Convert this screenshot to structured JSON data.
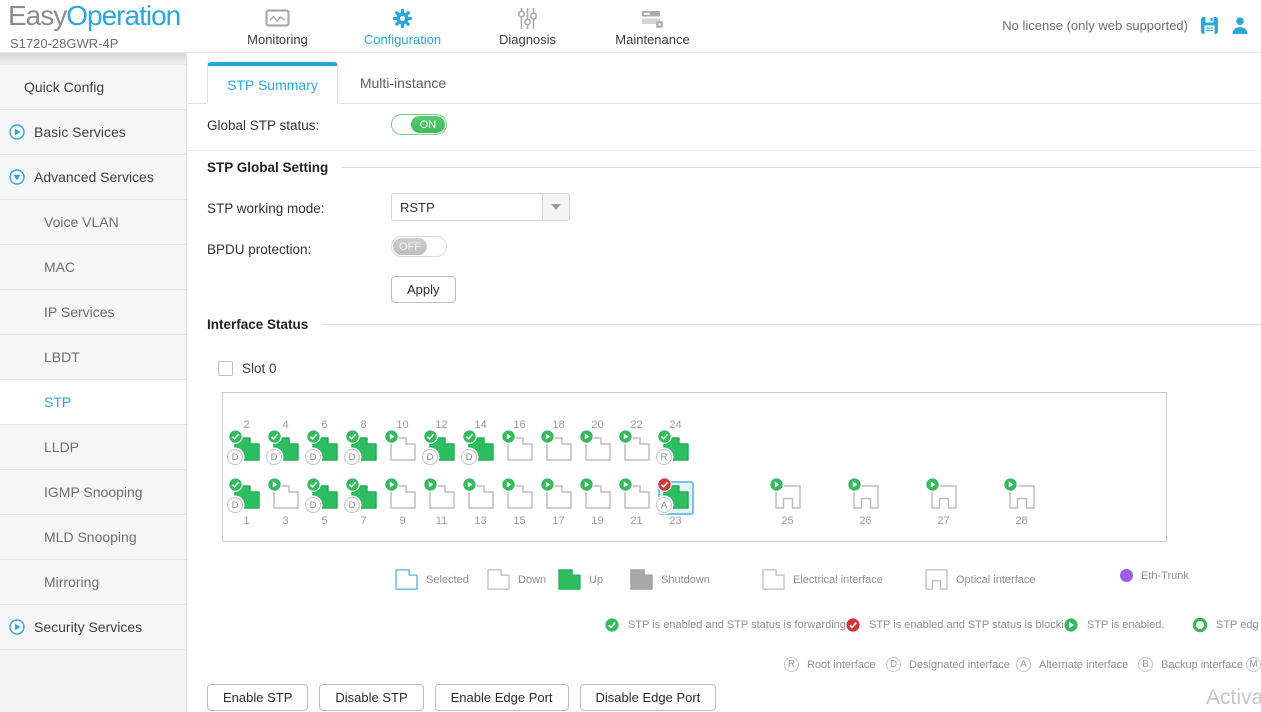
{
  "header": {
    "logo_easy": "Easy",
    "logo_operation": "Operation",
    "device_model": "S1720-28GWR-4P",
    "license_text": "No license (only web supported)",
    "nav": [
      {
        "label": "Monitoring",
        "icon": "monitor-icon",
        "active": false
      },
      {
        "label": "Configuration",
        "icon": "gear-icon",
        "active": true
      },
      {
        "label": "Diagnosis",
        "icon": "sliders-icon",
        "active": false
      },
      {
        "label": "Maintenance",
        "icon": "maintenance-icon",
        "active": false
      }
    ]
  },
  "sidebar": {
    "items": [
      {
        "label": "Quick Config",
        "type": "top",
        "expand": null,
        "active": false
      },
      {
        "label": "Basic Services",
        "type": "top",
        "expand": "collapsed",
        "active": false
      },
      {
        "label": "Advanced Services",
        "type": "top",
        "expand": "expanded",
        "active": false
      },
      {
        "label": "Voice VLAN",
        "type": "sub",
        "expand": null,
        "active": false
      },
      {
        "label": "MAC",
        "type": "sub",
        "expand": null,
        "active": false
      },
      {
        "label": "IP Services",
        "type": "sub",
        "expand": null,
        "active": false
      },
      {
        "label": "LBDT",
        "type": "sub",
        "expand": null,
        "active": false
      },
      {
        "label": "STP",
        "type": "sub",
        "expand": null,
        "active": true
      },
      {
        "label": "LLDP",
        "type": "sub",
        "expand": null,
        "active": false
      },
      {
        "label": "IGMP Snooping",
        "type": "sub",
        "expand": null,
        "active": false
      },
      {
        "label": "MLD Snooping",
        "type": "sub",
        "expand": null,
        "active": false
      },
      {
        "label": "Mirroring",
        "type": "sub",
        "expand": null,
        "active": false
      },
      {
        "label": "Security Services",
        "type": "top",
        "expand": "collapsed",
        "active": false
      }
    ]
  },
  "content": {
    "tabs": [
      {
        "label": "STP Summary",
        "active": true
      },
      {
        "label": "Multi-instance",
        "active": false
      }
    ],
    "global_stp": {
      "label": "Global STP status:",
      "value": "ON"
    },
    "sections": {
      "global_setting": "STP Global Setting",
      "interface_status": "Interface Status"
    },
    "working_mode": {
      "label": "STP working mode:",
      "value": "RSTP"
    },
    "bpdu": {
      "label": "BPDU protection:",
      "value": "OFF"
    },
    "apply_label": "Apply",
    "slot": {
      "label": "Slot 0",
      "checked": false
    },
    "ports": {
      "top_row": [
        {
          "num": "2",
          "state": "up",
          "badge": "check-green",
          "role": "D"
        },
        {
          "num": "4",
          "state": "up",
          "badge": "check-green",
          "role": "D"
        },
        {
          "num": "6",
          "state": "up",
          "badge": "check-green",
          "role": "D"
        },
        {
          "num": "8",
          "state": "up",
          "badge": "check-green",
          "role": "D"
        },
        {
          "num": "10",
          "state": "down",
          "badge": "play-green",
          "role": null
        },
        {
          "num": "12",
          "state": "up",
          "badge": "check-green",
          "role": "D"
        },
        {
          "num": "14",
          "state": "up",
          "badge": "check-green",
          "role": "D"
        },
        {
          "num": "16",
          "state": "down",
          "badge": "play-green",
          "role": null
        },
        {
          "num": "18",
          "state": "down",
          "badge": "play-green",
          "role": null
        },
        {
          "num": "20",
          "state": "down",
          "badge": "play-green",
          "role": null
        },
        {
          "num": "22",
          "state": "down",
          "badge": "play-green",
          "role": null
        },
        {
          "num": "24",
          "state": "up",
          "badge": "check-green",
          "role": "R"
        }
      ],
      "bottom_row": [
        {
          "num": "1",
          "state": "up",
          "badge": "check-green",
          "role": "D"
        },
        {
          "num": "3",
          "state": "down",
          "badge": "play-green",
          "role": null
        },
        {
          "num": "5",
          "state": "up",
          "badge": "check-green",
          "role": "D"
        },
        {
          "num": "7",
          "state": "up",
          "badge": "check-green",
          "role": "D"
        },
        {
          "num": "9",
          "state": "down",
          "badge": "play-green",
          "role": null
        },
        {
          "num": "11",
          "state": "down",
          "badge": "play-green",
          "role": null
        },
        {
          "num": "13",
          "state": "down",
          "badge": "play-green",
          "role": null
        },
        {
          "num": "15",
          "state": "down",
          "badge": "play-green",
          "role": null
        },
        {
          "num": "17",
          "state": "down",
          "badge": "play-green",
          "role": null
        },
        {
          "num": "19",
          "state": "down",
          "badge": "play-green",
          "role": null
        },
        {
          "num": "21",
          "state": "down",
          "badge": "play-green",
          "role": null
        },
        {
          "num": "23",
          "state": "up",
          "badge": "check-red",
          "role": "A",
          "selected": true
        },
        {
          "num": "25",
          "state": "down",
          "badge": "play-green",
          "role": null,
          "kind": "optical"
        },
        {
          "num": "26",
          "state": "down",
          "badge": "play-green",
          "role": null,
          "kind": "optical"
        },
        {
          "num": "27",
          "state": "down",
          "badge": "play-green",
          "role": null,
          "kind": "optical"
        },
        {
          "num": "28",
          "state": "down",
          "badge": "play-green",
          "role": null,
          "kind": "optical"
        }
      ]
    },
    "legend_state": [
      {
        "icon": "selected",
        "label": "Selected"
      },
      {
        "icon": "down",
        "label": "Down"
      },
      {
        "icon": "up",
        "label": "Up"
      },
      {
        "icon": "shutdown",
        "label": "Shutdown"
      },
      {
        "icon": "electrical",
        "label": "Electrical interface"
      },
      {
        "icon": "optical",
        "label": "Optical interface"
      },
      {
        "icon": "trunk",
        "label": "Eth-Trunk"
      }
    ],
    "legend_stp": [
      {
        "icon": "check-green",
        "label": "STP is enabled and STP status is forwarding."
      },
      {
        "icon": "check-red",
        "label": "STP is enabled and STP status is blocking."
      },
      {
        "icon": "play-green",
        "label": "STP is enabled."
      },
      {
        "icon": "ring-green",
        "label": "STP edg"
      }
    ],
    "legend_role": [
      {
        "letter": "R",
        "label": "Root interface"
      },
      {
        "letter": "D",
        "label": "Designated interface"
      },
      {
        "letter": "A",
        "label": "Alternate interface"
      },
      {
        "letter": "B",
        "label": "Backup interface"
      },
      {
        "letter": "M",
        "label": ""
      }
    ],
    "actions": [
      "Enable STP",
      "Disable STP",
      "Enable Edge Port",
      "Disable Edge Port"
    ]
  },
  "watermark": "Activa",
  "colors": {
    "accent": "#2BA7DE",
    "green": "#2DBE62",
    "badge_green": "#35B95D",
    "red": "#D0353B",
    "purple": "#9C5FE5"
  }
}
